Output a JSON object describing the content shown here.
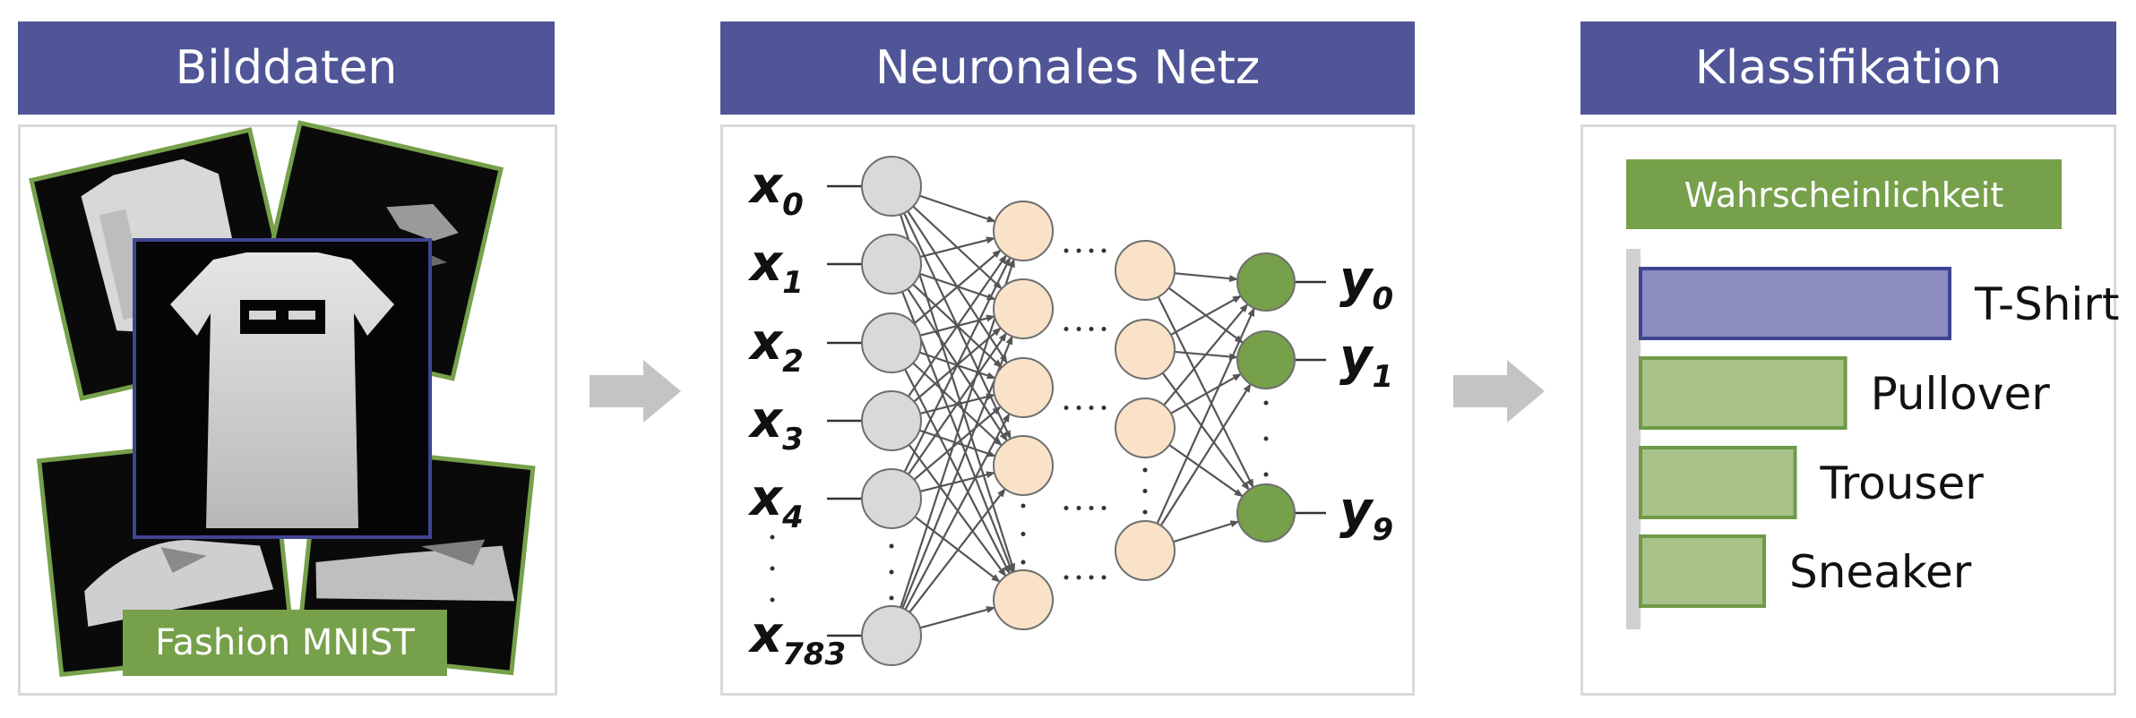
{
  "panels": {
    "image_data": {
      "title": "Bilddaten",
      "dataset_label": "Fashion MNIST"
    },
    "network": {
      "title": "Neuronales Netz",
      "inputs": [
        {
          "base": "x",
          "sub": "0"
        },
        {
          "base": "x",
          "sub": "1"
        },
        {
          "base": "x",
          "sub": "2"
        },
        {
          "base": "x",
          "sub": "3"
        },
        {
          "base": "x",
          "sub": "4"
        },
        {
          "base": "x",
          "sub": "783"
        }
      ],
      "outputs": [
        {
          "base": "y",
          "sub": "0"
        },
        {
          "base": "y",
          "sub": "1"
        },
        {
          "base": "y",
          "sub": "9"
        }
      ]
    },
    "classification": {
      "title": "Klassifikation",
      "legend_label": "Wahrscheinlichkeit",
      "bars": [
        {
          "label": "T-Shirt",
          "value": 0.8,
          "color": "#8b8dc0",
          "border": "#3f4492"
        },
        {
          "label": "Pullover",
          "value": 0.53,
          "color": "#a9c28a",
          "border": "#6f9a47"
        },
        {
          "label": "Trouser",
          "value": 0.4,
          "color": "#a9c28a",
          "border": "#6f9a47"
        },
        {
          "label": "Sneaker",
          "value": 0.32,
          "color": "#a9c28a",
          "border": "#6f9a47"
        }
      ]
    }
  },
  "colors": {
    "header": "#4f5597",
    "green": "#76a04a",
    "input_node": "#d9d9d9",
    "hidden_node": "#f9e2c7",
    "output_node": "#76a04a",
    "arrow": "#c4c4c4"
  }
}
